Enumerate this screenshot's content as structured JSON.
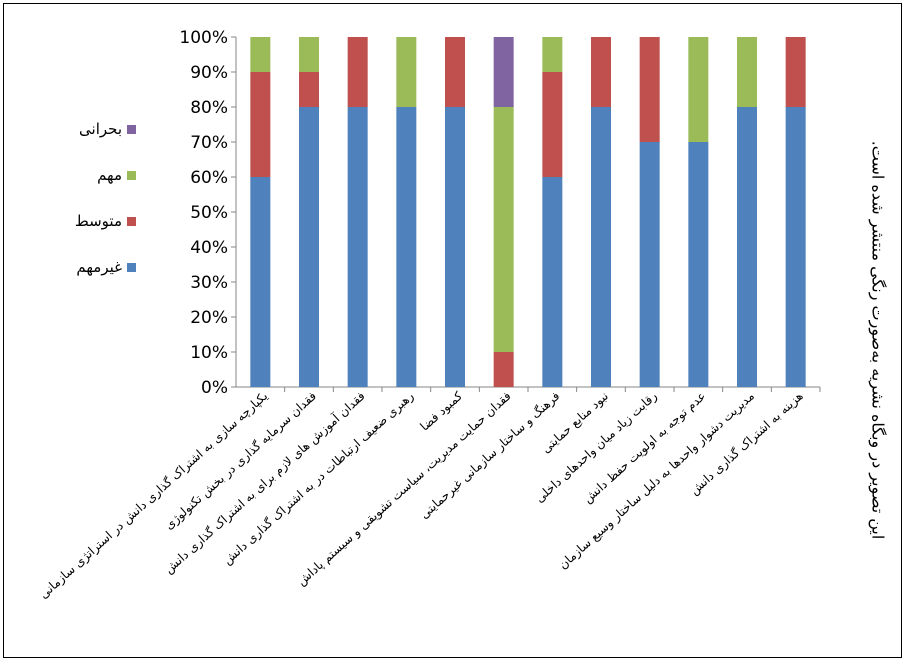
{
  "side_note": "این تصویر در وبگاه نشریه به‌صورت رنگی منتشر شده است.",
  "chart_data": {
    "type": "bar",
    "stacked": true,
    "percent_stacked": true,
    "y_ticks": [
      "0%",
      "10%",
      "20%",
      "30%",
      "40%",
      "50%",
      "60%",
      "70%",
      "80%",
      "90%",
      "100%"
    ],
    "ylim": [
      0,
      100
    ],
    "grid": false,
    "legend_position": "left",
    "categories": [
      "یکپارچه سازی به اشتراک گذاری دانش در استراتژی سازمانی",
      "فقدان سرمایه گذاری در بخش تکنولوژی",
      "فقدان آموزش های لازم برای به اشتراک گذاری دانش",
      "رهبری ضعیف ارتباطات در به اشتراک گذاری دانش",
      "کمبود فضا",
      "فقدان حمایت مدیریت، سیاست تشویقی و سیستم پاداش",
      "فرهنگ و ساختار سازمانی غیرحمایتی",
      "نبود منابع حمایتی",
      "رقابت زیاد میان واحدهای داخلی",
      "عدم توجه به اولویت حفظ دانش",
      "مدیریت دشوار واحدها به دلیل ساختار وسیع سازمان",
      "هزینه به اشتراک گذاری دانش"
    ],
    "series": [
      {
        "name": "غیرمهم",
        "color": "#4f81bd",
        "values": [
          60,
          80,
          80,
          80,
          80,
          0,
          60,
          80,
          70,
          70,
          80,
          80
        ]
      },
      {
        "name": "متوسط",
        "color": "#c0504d",
        "values": [
          30,
          10,
          20,
          0,
          20,
          10,
          30,
          20,
          30,
          0,
          0,
          20
        ]
      },
      {
        "name": "مهم",
        "color": "#9bbb59",
        "values": [
          10,
          10,
          0,
          20,
          0,
          70,
          10,
          0,
          0,
          30,
          20,
          0
        ]
      },
      {
        "name": "بحرانی",
        "color": "#8064a2",
        "values": [
          0,
          0,
          0,
          0,
          0,
          20,
          0,
          0,
          0,
          0,
          0,
          0
        ]
      }
    ],
    "legend_order": [
      "بحرانی",
      "مهم",
      "متوسط",
      "غیرمهم"
    ]
  }
}
